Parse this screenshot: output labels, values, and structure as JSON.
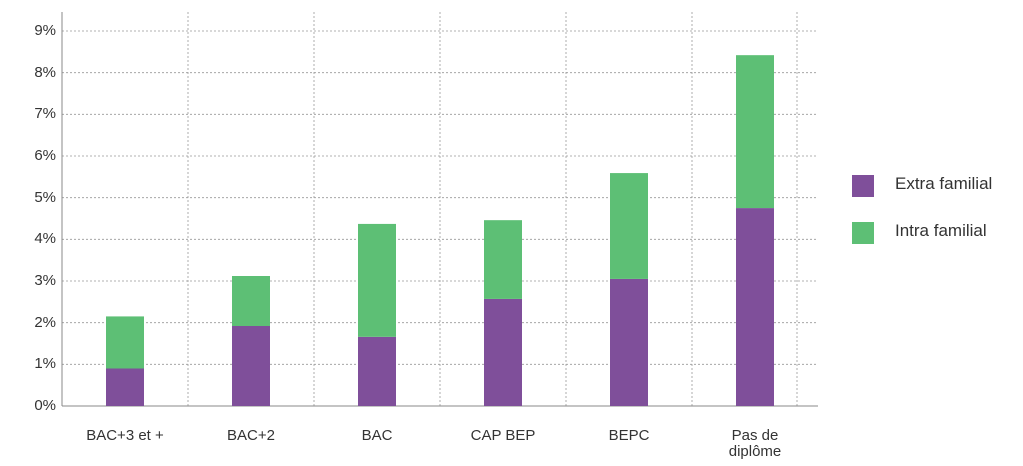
{
  "chart_data": {
    "type": "stacked_bar",
    "categories": [
      "BAC+3 et +",
      "BAC+2",
      "BAC",
      "CAP BEP",
      "BEPC",
      "Pas de diplôme"
    ],
    "series": [
      {
        "name": "Extra familial",
        "color": "#7f4f9a",
        "values": [
          0.9,
          1.92,
          1.66,
          2.57,
          3.05,
          4.75
        ]
      },
      {
        "name": "Intra familial",
        "color": "#5dbf75",
        "values": [
          1.25,
          1.2,
          2.71,
          1.89,
          2.54,
          3.67
        ]
      }
    ],
    "ylim": [
      0,
      9
    ],
    "yticks": [
      {
        "value": 0,
        "label": "0%"
      },
      {
        "value": 1,
        "label": "1%"
      },
      {
        "value": 2,
        "label": "2%"
      },
      {
        "value": 3,
        "label": "3%"
      },
      {
        "value": 4,
        "label": "4%"
      },
      {
        "value": 5,
        "label": "5%"
      },
      {
        "value": 6,
        "label": "6%"
      },
      {
        "value": 7,
        "label": "7%"
      },
      {
        "value": 8,
        "label": "8%"
      },
      {
        "value": 9,
        "label": "9%"
      }
    ],
    "grid": true,
    "legend": "right"
  }
}
